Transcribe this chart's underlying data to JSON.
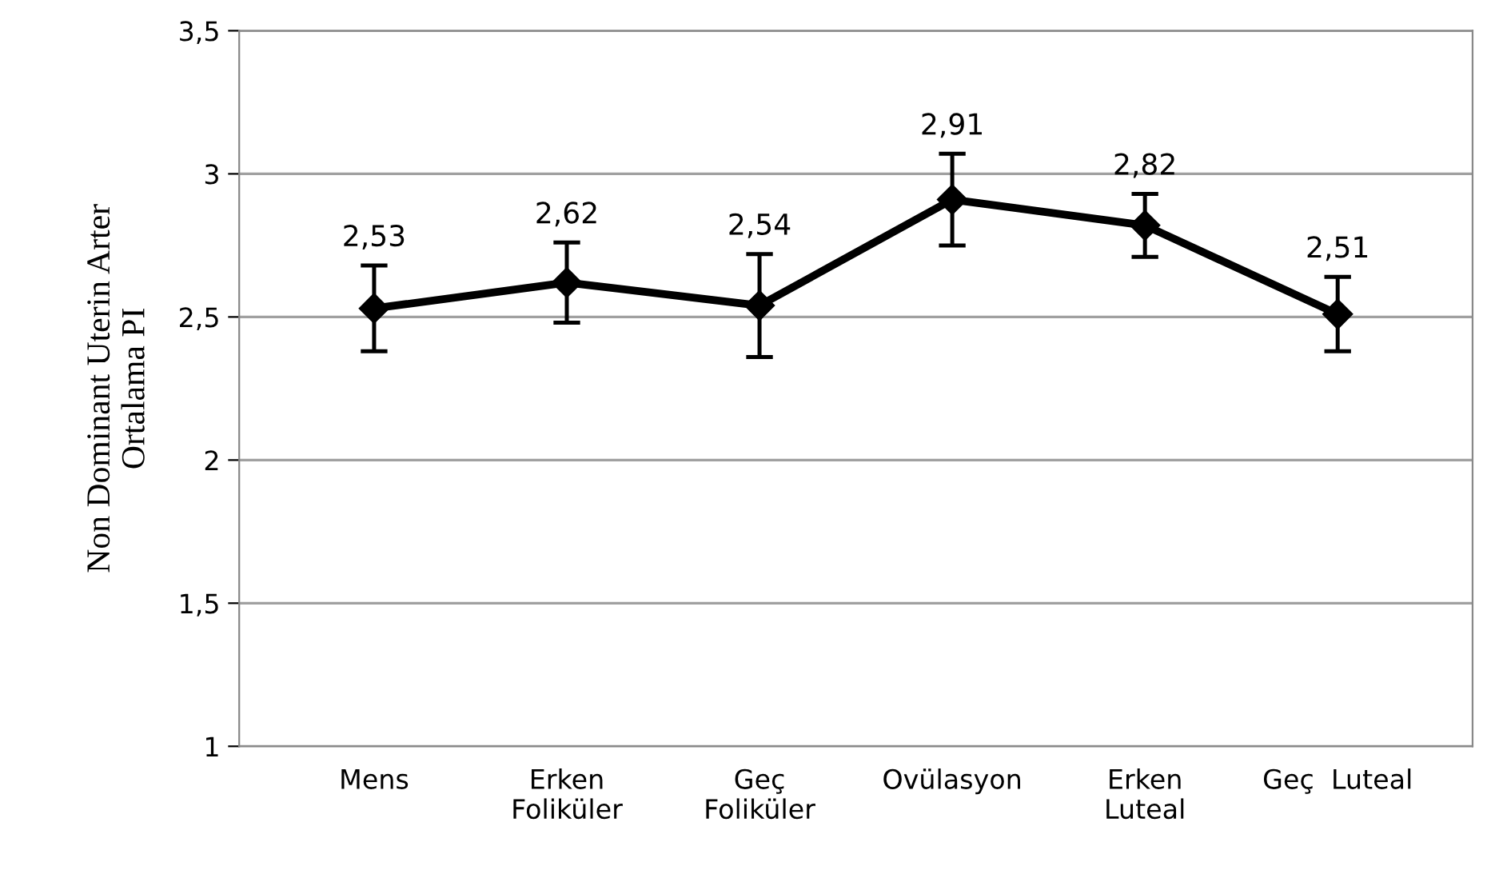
{
  "chart_data": {
    "type": "line",
    "ylabel": "Non Dominant Uterin Arter\nOrtalama PI",
    "categories": [
      "Mens",
      "Erken\nFoliküler",
      "Geç\nFoliküler",
      "Ovülasyon",
      "Erken\nLuteal",
      "Geç  Luteal"
    ],
    "series": [
      {
        "color": "#000000",
        "values": [
          2.53,
          2.62,
          2.54,
          2.91,
          2.82,
          2.51
        ],
        "errors": [
          0.15,
          0.14,
          0.18,
          0.16,
          0.11,
          0.13
        ],
        "value_labels": [
          "2,53",
          "2,62",
          "2,54",
          "2,91",
          "2,82",
          "2,51"
        ]
      }
    ],
    "ylim": [
      1,
      3.5
    ],
    "yticks": [
      {
        "value": 1,
        "label": "1"
      },
      {
        "value": 1.5,
        "label": "1,5"
      },
      {
        "value": 2,
        "label": "2"
      },
      {
        "value": 2.5,
        "label": "2,5"
      },
      {
        "value": 3,
        "label": "3"
      },
      {
        "value": 3.5,
        "label": "3,5"
      }
    ],
    "grid": "y",
    "marker": "diamond",
    "line_style": "solid",
    "legend": false
  }
}
